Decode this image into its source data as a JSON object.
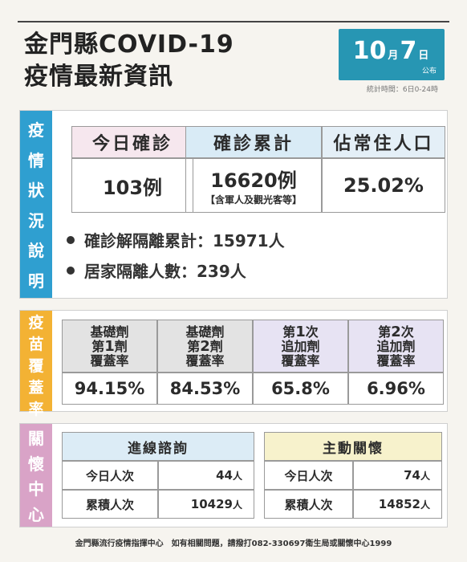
{
  "header": {
    "title_line1": "金門縣COVID-19",
    "title_line2": "疫情最新資訊",
    "date_month": "10",
    "date_month_unit": "月",
    "date_day": "7",
    "date_day_unit": "日",
    "date_pub": "公布",
    "stat_time": "統計時間：6日0-24時"
  },
  "epidemic": {
    "label_chars": [
      "疫",
      "情",
      "狀",
      "況",
      "說",
      "明"
    ],
    "today_label": "今日確診",
    "today_value": "103例",
    "cum_label": "確診累計",
    "cum_value": "16620例",
    "cum_note": "【含軍人及觀光客等】",
    "pop_label": "佔常住人口",
    "pop_value": "25.02%",
    "bullet1": "確診解隔離累計：15971人",
    "bullet2": "居家隔離人數：239人",
    "colors": {
      "today_bg": "#f6e7ee",
      "cum_bg": "#d9ebf6",
      "pop_bg": "#e4eff7"
    }
  },
  "vaccine": {
    "label_chars": [
      "疫",
      "苗",
      "覆",
      "蓋",
      "率"
    ],
    "cols": [
      {
        "line1": "基礎劑",
        "line2a": "第",
        "line2b": "1",
        "line2c": "劑",
        "line3": "覆蓋率",
        "value": "94.15%"
      },
      {
        "line1": "基礎劑",
        "line2a": "第",
        "line2b": "2",
        "line2c": "劑",
        "line3": "覆蓋率",
        "value": "84.53%"
      },
      {
        "line1a": "第",
        "line1b": "1",
        "line1c": "次",
        "line2": "追加劑",
        "line3": "覆蓋率",
        "value": "65.8%"
      },
      {
        "line1a": "第",
        "line1b": "2",
        "line1c": "次",
        "line2": "追加劑",
        "line3": "覆蓋率",
        "value": "6.96%"
      }
    ]
  },
  "care": {
    "label_chars": [
      "關",
      "懷",
      "中",
      "心"
    ],
    "left_title": "進線諮詢",
    "left_rows": [
      {
        "label": "今日人次",
        "value": "44",
        "unit": "人"
      },
      {
        "label": "累積人次",
        "value": "10429",
        "unit": "人"
      }
    ],
    "right_title": "主動關懷",
    "right_rows": [
      {
        "label": "今日人次",
        "value": "74",
        "unit": "人"
      },
      {
        "label": "累積人次",
        "value": "14852",
        "unit": "人"
      }
    ]
  },
  "footer": "金門縣流行疫情指揮中心　如有相關問題，請撥打082-330697衛生局或關懷中心1999"
}
